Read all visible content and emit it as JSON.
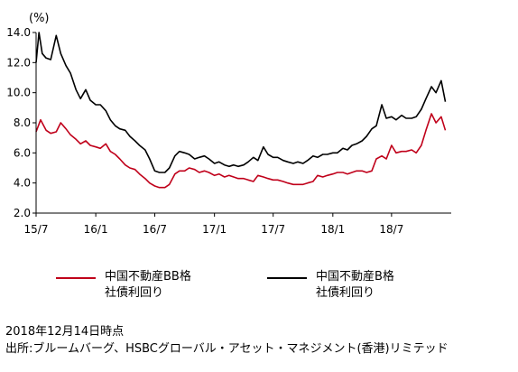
{
  "chart_data": {
    "type": "line",
    "unit_label": "(%)",
    "ylim": [
      2.0,
      14.0
    ],
    "y_ticks": [
      "2.0",
      "4.0",
      "6.0",
      "8.0",
      "10.0",
      "12.0",
      "14.0"
    ],
    "x_ticks": [
      "15/7",
      "16/1",
      "16/7",
      "17/1",
      "17/7",
      "18/1",
      "18/7"
    ],
    "x_range": [
      "2015-07",
      "2018-12-14"
    ],
    "grid": false,
    "legend_position": "bottom",
    "series": [
      {
        "name": "中国不動産BB格\n社債利回り",
        "color": "#c0001a",
        "points": [
          [
            "2015-07-01",
            7.4
          ],
          [
            "2015-07-15",
            8.2
          ],
          [
            "2015-08-01",
            7.5
          ],
          [
            "2015-08-15",
            7.3
          ],
          [
            "2015-09-01",
            7.4
          ],
          [
            "2015-09-15",
            8.0
          ],
          [
            "2015-10-01",
            7.6
          ],
          [
            "2015-10-15",
            7.2
          ],
          [
            "2015-11-01",
            6.9
          ],
          [
            "2015-11-15",
            6.6
          ],
          [
            "2015-12-01",
            6.8
          ],
          [
            "2015-12-15",
            6.5
          ],
          [
            "2016-01-01",
            6.4
          ],
          [
            "2016-01-15",
            6.3
          ],
          [
            "2016-02-01",
            6.6
          ],
          [
            "2016-02-15",
            6.1
          ],
          [
            "2016-03-01",
            5.9
          ],
          [
            "2016-03-15",
            5.6
          ],
          [
            "2016-04-01",
            5.2
          ],
          [
            "2016-04-15",
            5.0
          ],
          [
            "2016-05-01",
            4.9
          ],
          [
            "2016-05-15",
            4.6
          ],
          [
            "2016-06-01",
            4.3
          ],
          [
            "2016-06-15",
            4.0
          ],
          [
            "2016-07-01",
            3.8
          ],
          [
            "2016-07-15",
            3.7
          ],
          [
            "2016-08-01",
            3.7
          ],
          [
            "2016-08-15",
            3.9
          ],
          [
            "2016-09-01",
            4.6
          ],
          [
            "2016-09-15",
            4.8
          ],
          [
            "2016-10-01",
            4.8
          ],
          [
            "2016-10-15",
            5.0
          ],
          [
            "2016-11-01",
            4.9
          ],
          [
            "2016-11-15",
            4.7
          ],
          [
            "2016-12-01",
            4.8
          ],
          [
            "2016-12-15",
            4.7
          ],
          [
            "2017-01-01",
            4.5
          ],
          [
            "2017-01-15",
            4.6
          ],
          [
            "2017-02-01",
            4.4
          ],
          [
            "2017-02-15",
            4.5
          ],
          [
            "2017-03-01",
            4.4
          ],
          [
            "2017-03-15",
            4.3
          ],
          [
            "2017-04-01",
            4.3
          ],
          [
            "2017-04-15",
            4.2
          ],
          [
            "2017-05-01",
            4.1
          ],
          [
            "2017-05-15",
            4.5
          ],
          [
            "2017-06-01",
            4.4
          ],
          [
            "2017-06-15",
            4.3
          ],
          [
            "2017-07-01",
            4.2
          ],
          [
            "2017-07-15",
            4.2
          ],
          [
            "2017-08-01",
            4.1
          ],
          [
            "2017-08-15",
            4.0
          ],
          [
            "2017-09-01",
            3.9
          ],
          [
            "2017-09-15",
            3.9
          ],
          [
            "2017-10-01",
            3.9
          ],
          [
            "2017-10-15",
            4.0
          ],
          [
            "2017-11-01",
            4.1
          ],
          [
            "2017-11-15",
            4.5
          ],
          [
            "2017-12-01",
            4.4
          ],
          [
            "2017-12-15",
            4.5
          ],
          [
            "2018-01-01",
            4.6
          ],
          [
            "2018-01-15",
            4.7
          ],
          [
            "2018-02-01",
            4.7
          ],
          [
            "2018-02-15",
            4.6
          ],
          [
            "2018-03-01",
            4.7
          ],
          [
            "2018-03-15",
            4.8
          ],
          [
            "2018-04-01",
            4.8
          ],
          [
            "2018-04-15",
            4.7
          ],
          [
            "2018-05-01",
            4.8
          ],
          [
            "2018-05-15",
            5.6
          ],
          [
            "2018-06-01",
            5.8
          ],
          [
            "2018-06-15",
            5.6
          ],
          [
            "2018-07-01",
            6.5
          ],
          [
            "2018-07-15",
            6.0
          ],
          [
            "2018-08-01",
            6.1
          ],
          [
            "2018-08-15",
            6.1
          ],
          [
            "2018-09-01",
            6.2
          ],
          [
            "2018-09-15",
            6.0
          ],
          [
            "2018-10-01",
            6.5
          ],
          [
            "2018-10-15",
            7.5
          ],
          [
            "2018-11-01",
            8.6
          ],
          [
            "2018-11-15",
            8.0
          ],
          [
            "2018-12-01",
            8.4
          ],
          [
            "2018-12-14",
            7.5
          ]
        ]
      },
      {
        "name": "中国不動産B格\n社債利回り",
        "color": "#000000",
        "points": [
          [
            "2015-07-01",
            12.0
          ],
          [
            "2015-07-10",
            14.0
          ],
          [
            "2015-07-20",
            12.6
          ],
          [
            "2015-08-01",
            12.3
          ],
          [
            "2015-08-15",
            12.2
          ],
          [
            "2015-09-01",
            13.8
          ],
          [
            "2015-09-15",
            12.6
          ],
          [
            "2015-10-01",
            11.8
          ],
          [
            "2015-10-15",
            11.3
          ],
          [
            "2015-11-01",
            10.2
          ],
          [
            "2015-11-15",
            9.6
          ],
          [
            "2015-12-01",
            10.2
          ],
          [
            "2015-12-15",
            9.5
          ],
          [
            "2016-01-01",
            9.2
          ],
          [
            "2016-01-15",
            9.2
          ],
          [
            "2016-02-01",
            8.8
          ],
          [
            "2016-02-15",
            8.2
          ],
          [
            "2016-03-01",
            7.8
          ],
          [
            "2016-03-15",
            7.6
          ],
          [
            "2016-04-01",
            7.5
          ],
          [
            "2016-04-15",
            7.1
          ],
          [
            "2016-05-01",
            6.8
          ],
          [
            "2016-05-15",
            6.5
          ],
          [
            "2016-06-01",
            6.2
          ],
          [
            "2016-06-15",
            5.6
          ],
          [
            "2016-07-01",
            4.8
          ],
          [
            "2016-07-15",
            4.7
          ],
          [
            "2016-08-01",
            4.7
          ],
          [
            "2016-08-15",
            5.0
          ],
          [
            "2016-09-01",
            5.8
          ],
          [
            "2016-09-15",
            6.1
          ],
          [
            "2016-10-01",
            6.0
          ],
          [
            "2016-10-15",
            5.9
          ],
          [
            "2016-11-01",
            5.6
          ],
          [
            "2016-11-15",
            5.7
          ],
          [
            "2016-12-01",
            5.8
          ],
          [
            "2016-12-15",
            5.6
          ],
          [
            "2017-01-01",
            5.3
          ],
          [
            "2017-01-15",
            5.4
          ],
          [
            "2017-02-01",
            5.2
          ],
          [
            "2017-02-15",
            5.1
          ],
          [
            "2017-03-01",
            5.2
          ],
          [
            "2017-03-15",
            5.1
          ],
          [
            "2017-04-01",
            5.2
          ],
          [
            "2017-04-15",
            5.4
          ],
          [
            "2017-05-01",
            5.7
          ],
          [
            "2017-05-15",
            5.5
          ],
          [
            "2017-06-01",
            6.4
          ],
          [
            "2017-06-15",
            5.9
          ],
          [
            "2017-07-01",
            5.7
          ],
          [
            "2017-07-15",
            5.7
          ],
          [
            "2017-08-01",
            5.5
          ],
          [
            "2017-08-15",
            5.4
          ],
          [
            "2017-09-01",
            5.3
          ],
          [
            "2017-09-15",
            5.4
          ],
          [
            "2017-10-01",
            5.3
          ],
          [
            "2017-10-15",
            5.5
          ],
          [
            "2017-11-01",
            5.8
          ],
          [
            "2017-11-15",
            5.7
          ],
          [
            "2017-12-01",
            5.9
          ],
          [
            "2017-12-15",
            5.9
          ],
          [
            "2018-01-01",
            6.0
          ],
          [
            "2018-01-15",
            6.0
          ],
          [
            "2018-02-01",
            6.3
          ],
          [
            "2018-02-15",
            6.2
          ],
          [
            "2018-03-01",
            6.5
          ],
          [
            "2018-03-15",
            6.6
          ],
          [
            "2018-04-01",
            6.8
          ],
          [
            "2018-04-15",
            7.1
          ],
          [
            "2018-05-01",
            7.6
          ],
          [
            "2018-05-15",
            7.8
          ],
          [
            "2018-06-01",
            9.2
          ],
          [
            "2018-06-15",
            8.3
          ],
          [
            "2018-07-01",
            8.4
          ],
          [
            "2018-07-15",
            8.2
          ],
          [
            "2018-08-01",
            8.5
          ],
          [
            "2018-08-15",
            8.3
          ],
          [
            "2018-09-01",
            8.3
          ],
          [
            "2018-09-15",
            8.4
          ],
          [
            "2018-10-01",
            8.9
          ],
          [
            "2018-10-15",
            9.6
          ],
          [
            "2018-11-01",
            10.4
          ],
          [
            "2018-11-15",
            10.0
          ],
          [
            "2018-12-01",
            10.8
          ],
          [
            "2018-12-14",
            9.4
          ]
        ]
      }
    ]
  },
  "notes": {
    "as_of": "2018年12月14日時点",
    "source": "出所:ブルームバーグ、HSBCグローバル・アセット・マネジメント(香港)リミテッド"
  }
}
